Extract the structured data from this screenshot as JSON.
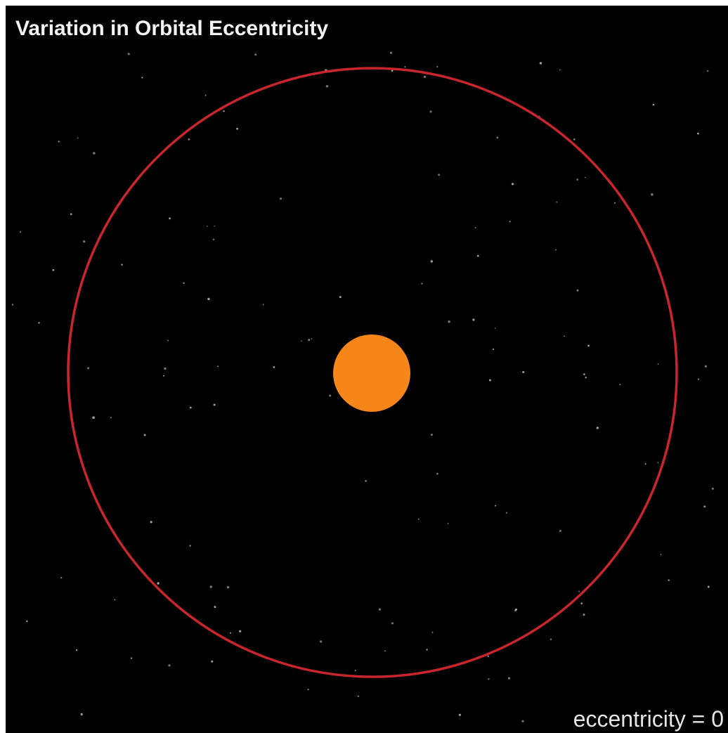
{
  "title": "Variation in Orbital Eccentricity",
  "label": "eccentricity = 0"
}
